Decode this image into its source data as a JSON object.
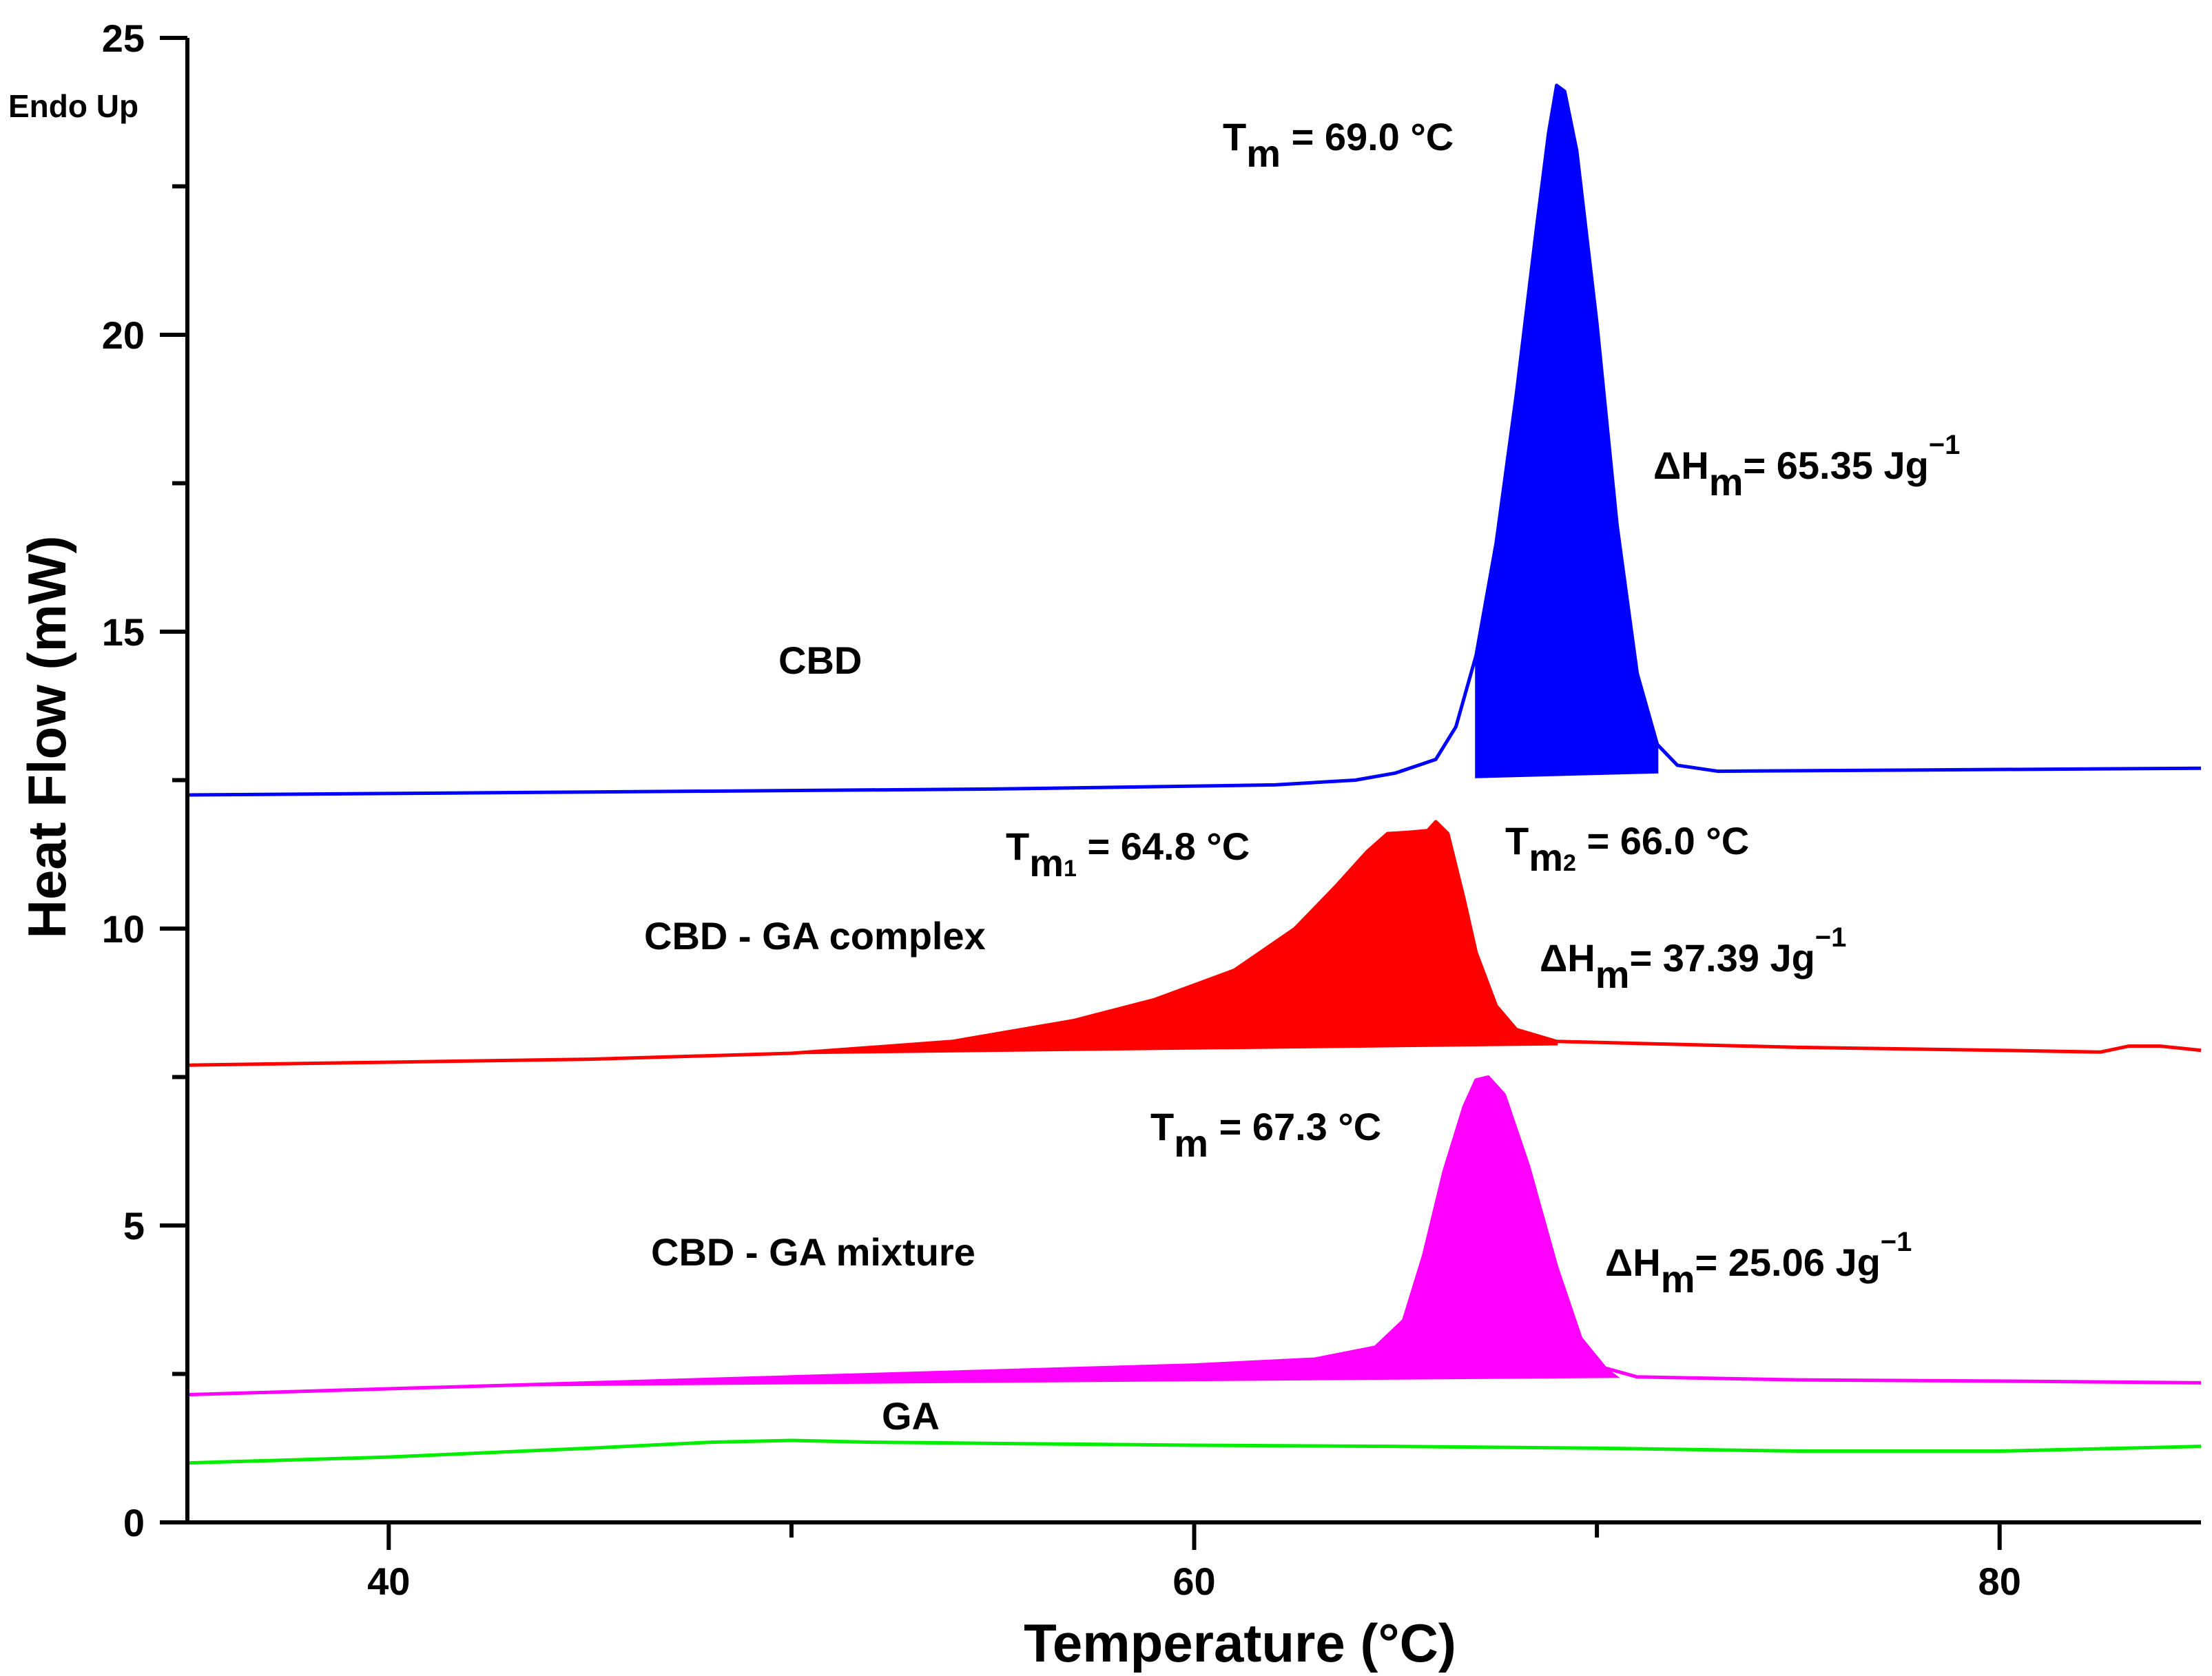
{
  "chart_data": {
    "type": "line",
    "title": "",
    "xlabel": "Temperature (°C)",
    "ylabel": "Heat Flow (mW)",
    "corner_label": "Endo Up",
    "xlim": [
      35,
      85
    ],
    "ylim": [
      0,
      25
    ],
    "x_ticks": [
      40,
      60,
      80
    ],
    "x_tick_labels": [
      "40",
      "60",
      "80"
    ],
    "y_ticks": [
      0,
      5,
      10,
      15,
      20,
      25
    ],
    "y_tick_labels": [
      "0",
      "5",
      "10",
      "15",
      "20",
      "25"
    ],
    "series": [
      {
        "name": "CBD",
        "label": "CBD",
        "color": "#0000ff",
        "filled": true,
        "fill_range": [
          67.0,
          71.5
        ],
        "points": [
          [
            35,
            12.25
          ],
          [
            45,
            12.3
          ],
          [
            55,
            12.35
          ],
          [
            62,
            12.42
          ],
          [
            64,
            12.5
          ],
          [
            65,
            12.62
          ],
          [
            66,
            12.85
          ],
          [
            66.5,
            13.4
          ],
          [
            67,
            14.6
          ],
          [
            67.5,
            16.5
          ],
          [
            68,
            19.0
          ],
          [
            68.5,
            21.8
          ],
          [
            68.8,
            23.4
          ],
          [
            69.0,
            24.2
          ],
          [
            69.2,
            24.1
          ],
          [
            69.5,
            23.1
          ],
          [
            70,
            20.2
          ],
          [
            70.5,
            16.8
          ],
          [
            71,
            14.3
          ],
          [
            71.5,
            13.1
          ],
          [
            72,
            12.75
          ],
          [
            73,
            12.65
          ],
          [
            85,
            12.7
          ]
        ],
        "baseline": [
          [
            67.0,
            12.55
          ],
          [
            71.5,
            12.63
          ]
        ]
      },
      {
        "name": "CBD - GA complex",
        "label": "CBD - GA complex",
        "color": "#ff0000",
        "filled": true,
        "fill_range": [
          50.0,
          69.0
        ],
        "points": [
          [
            35,
            7.7
          ],
          [
            40,
            7.75
          ],
          [
            45,
            7.8
          ],
          [
            50,
            7.9
          ],
          [
            54,
            8.1
          ],
          [
            57,
            8.45
          ],
          [
            59,
            8.8
          ],
          [
            61,
            9.3
          ],
          [
            62.5,
            10.0
          ],
          [
            63.5,
            10.7
          ],
          [
            64.3,
            11.3
          ],
          [
            64.8,
            11.6
          ],
          [
            65.3,
            11.62
          ],
          [
            65.8,
            11.65
          ],
          [
            66.0,
            11.8
          ],
          [
            66.3,
            11.6
          ],
          [
            66.7,
            10.5
          ],
          [
            67.0,
            9.6
          ],
          [
            67.5,
            8.7
          ],
          [
            68,
            8.3
          ],
          [
            69,
            8.1
          ],
          [
            75,
            8.0
          ],
          [
            80,
            7.95
          ],
          [
            82.5,
            7.92
          ],
          [
            83.2,
            8.02
          ],
          [
            84,
            8.02
          ],
          [
            85,
            7.95
          ]
        ],
        "baseline": [
          [
            50.0,
            7.9
          ],
          [
            69.0,
            8.05
          ]
        ]
      },
      {
        "name": "CBD - GA mixture",
        "label": "CBD - GA mixture",
        "color": "#ff00ff",
        "filled": true,
        "fill_range": [
          42.0,
          70.5
        ],
        "points": [
          [
            35,
            2.15
          ],
          [
            40,
            2.25
          ],
          [
            45,
            2.35
          ],
          [
            50,
            2.45
          ],
          [
            55,
            2.55
          ],
          [
            60,
            2.65
          ],
          [
            63,
            2.75
          ],
          [
            64.5,
            2.95
          ],
          [
            65.2,
            3.4
          ],
          [
            65.7,
            4.5
          ],
          [
            66.2,
            5.9
          ],
          [
            66.7,
            7.0
          ],
          [
            67.0,
            7.45
          ],
          [
            67.3,
            7.5
          ],
          [
            67.7,
            7.2
          ],
          [
            68.3,
            6.0
          ],
          [
            69,
            4.3
          ],
          [
            69.6,
            3.1
          ],
          [
            70.2,
            2.6
          ],
          [
            71,
            2.45
          ],
          [
            75,
            2.4
          ],
          [
            80,
            2.38
          ],
          [
            85,
            2.35
          ]
        ],
        "baseline": [
          [
            42.0,
            2.3
          ],
          [
            70.5,
            2.45
          ]
        ]
      },
      {
        "name": "GA",
        "label": "GA",
        "color": "#00ee00",
        "filled": false,
        "points": [
          [
            35,
            1.0
          ],
          [
            40,
            1.1
          ],
          [
            45,
            1.25
          ],
          [
            48,
            1.35
          ],
          [
            50,
            1.38
          ],
          [
            52,
            1.35
          ],
          [
            55,
            1.33
          ],
          [
            60,
            1.3
          ],
          [
            65,
            1.28
          ],
          [
            70,
            1.25
          ],
          [
            75,
            1.2
          ],
          [
            80,
            1.2
          ],
          [
            85,
            1.28
          ]
        ]
      }
    ],
    "annotations": {
      "cbd_tm": {
        "main": "T",
        "sub": "m",
        "rest": " = 69.0 °C"
      },
      "cbd_dh": {
        "main": "ΔH",
        "sub": "m",
        "rest": "= 65.35 Jg",
        "sup": "−1"
      },
      "complex_tm1": {
        "main": "T",
        "sub": "m",
        "sub2": "1",
        "rest": " = 64.8 °C"
      },
      "complex_tm2": {
        "main": "T",
        "sub": "m",
        "sub2": "2",
        "rest": " = 66.0 °C"
      },
      "complex_dh": {
        "main": "ΔH",
        "sub": "m",
        "rest": "= 37.39 Jg",
        "sup": "−1"
      },
      "mixture_tm": {
        "main": "T",
        "sub": "m",
        "rest": " = 67.3 °C"
      },
      "mixture_dh": {
        "main": "ΔH",
        "sub": "m",
        "rest": "= 25.06 Jg",
        "sup": "−1"
      }
    }
  }
}
